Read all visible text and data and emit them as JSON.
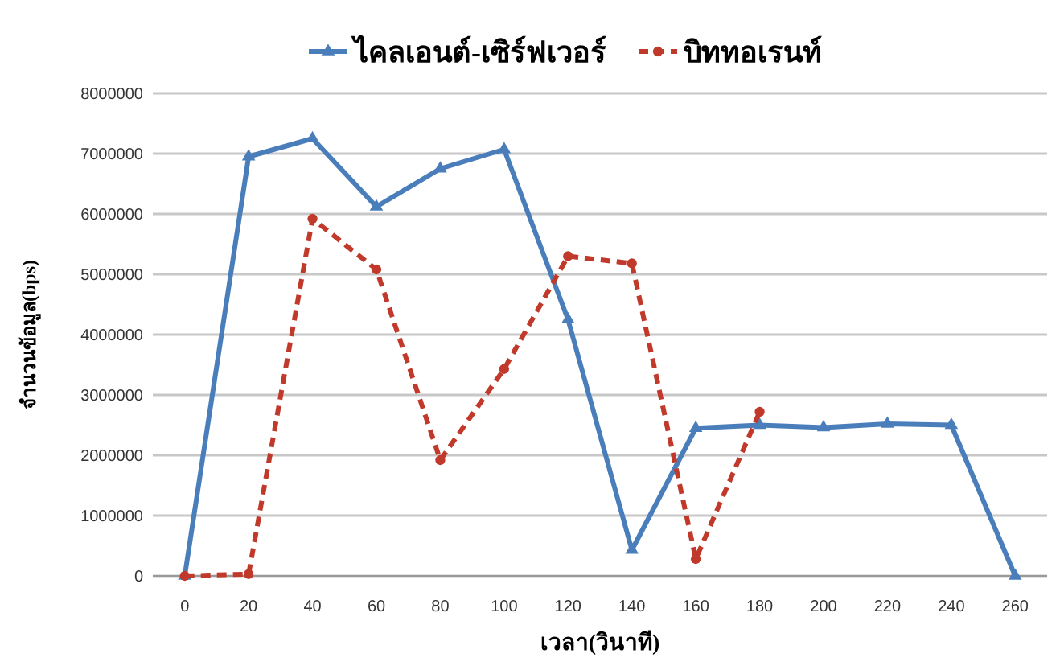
{
  "chart_data": {
    "type": "line",
    "xlabel": "เวลา(วินาที)",
    "ylabel": "จำนวนข้อมูล(bps)",
    "categories": [
      "0",
      "20",
      "40",
      "60",
      "80",
      "100",
      "120",
      "140",
      "160",
      "180",
      "200",
      "220",
      "240",
      "260"
    ],
    "series": [
      {
        "name": "ไคลเอนต์-เซิร์ฟเวอร์",
        "color": "#4a7ebb",
        "marker": "triangle",
        "line_style": "solid",
        "values": [
          0,
          6950000,
          7250000,
          6120000,
          6750000,
          7070000,
          4250000,
          430000,
          2450000,
          2500000,
          2460000,
          2520000,
          2500000,
          0
        ]
      },
      {
        "name": "บิททอเรนท์",
        "color": "#c0392b",
        "marker": "circle",
        "line_style": "dashed",
        "values": [
          0,
          30000,
          5920000,
          5080000,
          1920000,
          3430000,
          5300000,
          5180000,
          280000,
          2720000,
          null,
          null,
          null,
          null
        ]
      }
    ],
    "ylim": [
      0,
      8000000
    ],
    "yticks": [
      0,
      1000000,
      2000000,
      3000000,
      4000000,
      5000000,
      6000000,
      7000000,
      8000000
    ],
    "grid": "y",
    "legend": "top"
  }
}
